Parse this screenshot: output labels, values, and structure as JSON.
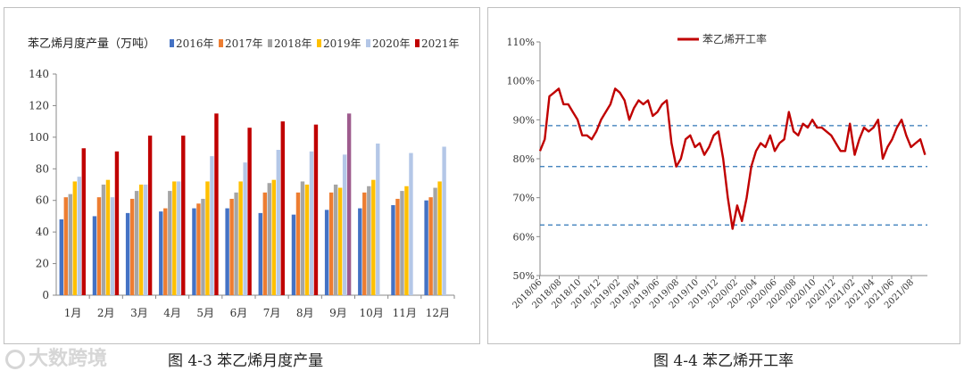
{
  "captions": {
    "left": "图 4-3  苯乙烯月度产量",
    "right": "图 4-4  苯乙烯开工率"
  },
  "watermark": {
    "text": "大数跨境"
  },
  "chart_data": [
    {
      "type": "bar",
      "title": "苯乙烯月度产量（万吨）",
      "categories": [
        "1月",
        "2月",
        "3月",
        "4月",
        "5月",
        "6月",
        "7月",
        "8月",
        "9月",
        "10月",
        "11月",
        "12月"
      ],
      "ylim": [
        0,
        140
      ],
      "yticks": [
        0,
        20,
        40,
        60,
        80,
        100,
        120,
        140
      ],
      "legend_position": "top",
      "series": [
        {
          "name": "2016年",
          "color": "#4472c4",
          "values": [
            48,
            50,
            52,
            53,
            55,
            55,
            52,
            51,
            54,
            55,
            57,
            60
          ]
        },
        {
          "name": "2017年",
          "color": "#ed7d31",
          "values": [
            62,
            62,
            61,
            55,
            58,
            61,
            65,
            65,
            65,
            65,
            61,
            62
          ]
        },
        {
          "name": "2018年",
          "color": "#a5a5a5",
          "values": [
            64,
            70,
            66,
            66,
            61,
            65,
            71,
            72,
            70,
            69,
            66,
            68
          ]
        },
        {
          "name": "2019年",
          "color": "#ffc000",
          "values": [
            72,
            73,
            70,
            72,
            72,
            72,
            73,
            70,
            68,
            73,
            69,
            72
          ]
        },
        {
          "name": "2020年",
          "color": "#b4c7e7",
          "values": [
            75,
            62,
            70,
            72,
            88,
            84,
            92,
            91,
            89,
            96,
            90,
            94
          ]
        },
        {
          "name": "2021年",
          "color": "#c00000",
          "values": [
            93,
            91,
            101,
            101,
            115,
            106,
            110,
            108,
            115,
            null,
            null,
            null
          ]
        }
      ],
      "highlight": {
        "category": "9月",
        "series": "2021年",
        "color": "#9e5c8e"
      }
    },
    {
      "type": "line",
      "title": "",
      "legend": [
        "苯乙烯开工率"
      ],
      "legend_position": "top-center",
      "ylim": [
        50,
        110
      ],
      "yticks": [
        "50%",
        "60%",
        "70%",
        "80%",
        "90%",
        "100%",
        "110%"
      ],
      "xticks": [
        "2018/06",
        "2018/08",
        "2018/10",
        "2018/12",
        "2019/02",
        "2019/04",
        "2019/06",
        "2019/08",
        "2019/10",
        "2019/12",
        "2020/02",
        "2020/04",
        "2020/06",
        "2020/08",
        "2020/10",
        "2020/12",
        "2021/02",
        "2021/04",
        "2021/06",
        "2021/08"
      ],
      "reference_lines": [
        88.5,
        78,
        63
      ],
      "series": [
        {
          "name": "苯乙烯开工率",
          "color": "#c00000",
          "x": [
            2018.42,
            2018.46,
            2018.5,
            2018.54,
            2018.58,
            2018.62,
            2018.66,
            2018.7,
            2018.74,
            2018.78,
            2018.82,
            2018.86,
            2018.9,
            2018.94,
            2018.98,
            2019.02,
            2019.06,
            2019.1,
            2019.14,
            2019.18,
            2019.22,
            2019.26,
            2019.3,
            2019.34,
            2019.38,
            2019.42,
            2019.46,
            2019.5,
            2019.54,
            2019.58,
            2019.62,
            2019.66,
            2019.7,
            2019.74,
            2019.78,
            2019.82,
            2019.86,
            2019.9,
            2019.94,
            2019.98,
            2020.02,
            2020.06,
            2020.1,
            2020.14,
            2020.18,
            2020.22,
            2020.26,
            2020.3,
            2020.34,
            2020.38,
            2020.42,
            2020.46,
            2020.5,
            2020.54,
            2020.58,
            2020.62,
            2020.66,
            2020.7,
            2020.74,
            2020.78,
            2020.82,
            2020.86,
            2020.9,
            2020.94,
            2020.98,
            2021.02,
            2021.06,
            2021.1,
            2021.14,
            2021.18,
            2021.22,
            2021.26,
            2021.3,
            2021.34,
            2021.38,
            2021.42,
            2021.46,
            2021.5,
            2021.54,
            2021.58,
            2021.62,
            2021.66,
            2021.7
          ],
          "y": [
            82,
            85,
            96,
            97,
            98,
            94,
            94,
            92,
            90,
            86,
            86,
            85,
            87,
            90,
            92,
            94,
            98,
            97,
            95,
            90,
            93,
            95,
            94,
            95,
            91,
            92,
            94,
            95,
            84,
            78,
            80,
            85,
            86,
            83,
            84,
            81,
            83,
            86,
            87,
            80,
            70,
            62,
            68,
            64,
            70,
            78,
            82,
            84,
            83,
            86,
            82,
            84,
            85,
            92,
            87,
            86,
            89,
            88,
            90,
            88,
            88,
            87,
            86,
            84,
            82,
            82,
            89,
            81,
            85,
            88,
            87,
            88,
            90,
            80,
            83,
            85,
            88,
            90,
            86,
            83,
            84,
            85,
            81
          ]
        }
      ]
    }
  ]
}
